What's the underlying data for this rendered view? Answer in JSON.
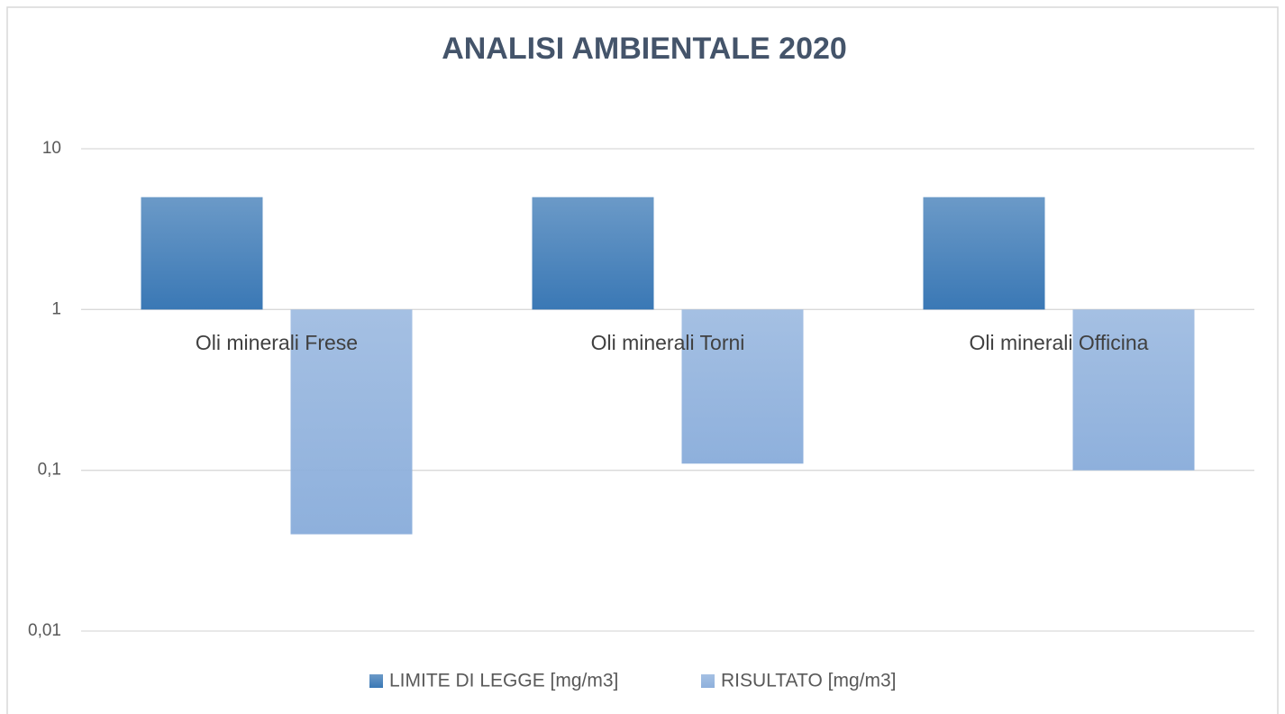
{
  "chart_data": {
    "type": "bar",
    "title": "ANALISI AMBIENTALE  2020",
    "categories": [
      "Oli minerali Frese",
      "Oli minerali Torni",
      "Oli minerali Officina"
    ],
    "series": [
      {
        "name": "LIMITE DI LEGGE [mg/m3]",
        "color": "#3a78b5",
        "values": [
          5,
          5,
          5
        ]
      },
      {
        "name": "RISULTATO [mg/m3]",
        "color": "#8eb0dc",
        "values": [
          0.04,
          0.11,
          0.1
        ]
      }
    ],
    "log_scale": true,
    "ylim": [
      0.01,
      10
    ],
    "yticks": [
      10,
      1,
      {
        "value": 0.1,
        "label": "0,1"
      },
      {
        "value": 0.01,
        "label": "0,01"
      }
    ],
    "grid": true,
    "legend": "bottom"
  }
}
